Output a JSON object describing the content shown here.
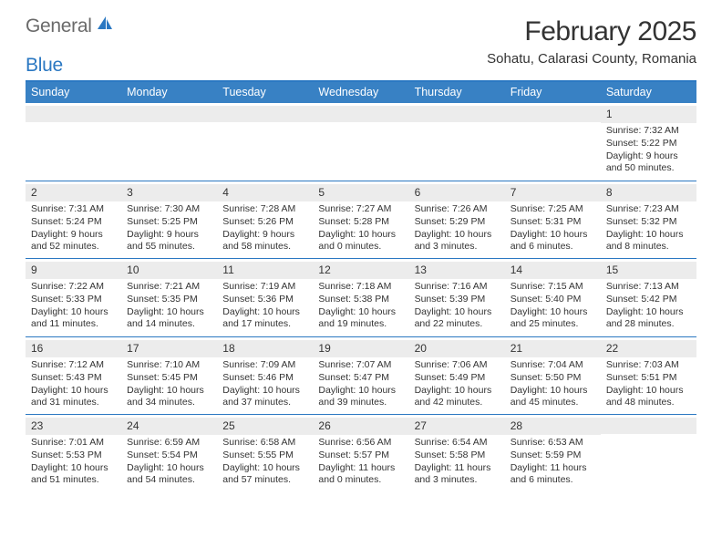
{
  "brand": {
    "word1": "General",
    "word2": "Blue"
  },
  "header": {
    "title": "February 2025",
    "location": "Sohatu, Calarasi County, Romania"
  },
  "colors": {
    "accent": "#2b78c2",
    "header_bg": "#3881c4",
    "header_text": "#ffffff",
    "num_bar_bg": "#ececec",
    "text": "#333333",
    "logo_gray": "#6a6a6a"
  },
  "day_names": [
    "Sunday",
    "Monday",
    "Tuesday",
    "Wednesday",
    "Thursday",
    "Friday",
    "Saturday"
  ],
  "weeks": [
    [
      {
        "n": "",
        "sr": "",
        "ss": "",
        "dl": ""
      },
      {
        "n": "",
        "sr": "",
        "ss": "",
        "dl": ""
      },
      {
        "n": "",
        "sr": "",
        "ss": "",
        "dl": ""
      },
      {
        "n": "",
        "sr": "",
        "ss": "",
        "dl": ""
      },
      {
        "n": "",
        "sr": "",
        "ss": "",
        "dl": ""
      },
      {
        "n": "",
        "sr": "",
        "ss": "",
        "dl": ""
      },
      {
        "n": "1",
        "sr": "Sunrise: 7:32 AM",
        "ss": "Sunset: 5:22 PM",
        "dl": "Daylight: 9 hours and 50 minutes."
      }
    ],
    [
      {
        "n": "2",
        "sr": "Sunrise: 7:31 AM",
        "ss": "Sunset: 5:24 PM",
        "dl": "Daylight: 9 hours and 52 minutes."
      },
      {
        "n": "3",
        "sr": "Sunrise: 7:30 AM",
        "ss": "Sunset: 5:25 PM",
        "dl": "Daylight: 9 hours and 55 minutes."
      },
      {
        "n": "4",
        "sr": "Sunrise: 7:28 AM",
        "ss": "Sunset: 5:26 PM",
        "dl": "Daylight: 9 hours and 58 minutes."
      },
      {
        "n": "5",
        "sr": "Sunrise: 7:27 AM",
        "ss": "Sunset: 5:28 PM",
        "dl": "Daylight: 10 hours and 0 minutes."
      },
      {
        "n": "6",
        "sr": "Sunrise: 7:26 AM",
        "ss": "Sunset: 5:29 PM",
        "dl": "Daylight: 10 hours and 3 minutes."
      },
      {
        "n": "7",
        "sr": "Sunrise: 7:25 AM",
        "ss": "Sunset: 5:31 PM",
        "dl": "Daylight: 10 hours and 6 minutes."
      },
      {
        "n": "8",
        "sr": "Sunrise: 7:23 AM",
        "ss": "Sunset: 5:32 PM",
        "dl": "Daylight: 10 hours and 8 minutes."
      }
    ],
    [
      {
        "n": "9",
        "sr": "Sunrise: 7:22 AM",
        "ss": "Sunset: 5:33 PM",
        "dl": "Daylight: 10 hours and 11 minutes."
      },
      {
        "n": "10",
        "sr": "Sunrise: 7:21 AM",
        "ss": "Sunset: 5:35 PM",
        "dl": "Daylight: 10 hours and 14 minutes."
      },
      {
        "n": "11",
        "sr": "Sunrise: 7:19 AM",
        "ss": "Sunset: 5:36 PM",
        "dl": "Daylight: 10 hours and 17 minutes."
      },
      {
        "n": "12",
        "sr": "Sunrise: 7:18 AM",
        "ss": "Sunset: 5:38 PM",
        "dl": "Daylight: 10 hours and 19 minutes."
      },
      {
        "n": "13",
        "sr": "Sunrise: 7:16 AM",
        "ss": "Sunset: 5:39 PM",
        "dl": "Daylight: 10 hours and 22 minutes."
      },
      {
        "n": "14",
        "sr": "Sunrise: 7:15 AM",
        "ss": "Sunset: 5:40 PM",
        "dl": "Daylight: 10 hours and 25 minutes."
      },
      {
        "n": "15",
        "sr": "Sunrise: 7:13 AM",
        "ss": "Sunset: 5:42 PM",
        "dl": "Daylight: 10 hours and 28 minutes."
      }
    ],
    [
      {
        "n": "16",
        "sr": "Sunrise: 7:12 AM",
        "ss": "Sunset: 5:43 PM",
        "dl": "Daylight: 10 hours and 31 minutes."
      },
      {
        "n": "17",
        "sr": "Sunrise: 7:10 AM",
        "ss": "Sunset: 5:45 PM",
        "dl": "Daylight: 10 hours and 34 minutes."
      },
      {
        "n": "18",
        "sr": "Sunrise: 7:09 AM",
        "ss": "Sunset: 5:46 PM",
        "dl": "Daylight: 10 hours and 37 minutes."
      },
      {
        "n": "19",
        "sr": "Sunrise: 7:07 AM",
        "ss": "Sunset: 5:47 PM",
        "dl": "Daylight: 10 hours and 39 minutes."
      },
      {
        "n": "20",
        "sr": "Sunrise: 7:06 AM",
        "ss": "Sunset: 5:49 PM",
        "dl": "Daylight: 10 hours and 42 minutes."
      },
      {
        "n": "21",
        "sr": "Sunrise: 7:04 AM",
        "ss": "Sunset: 5:50 PM",
        "dl": "Daylight: 10 hours and 45 minutes."
      },
      {
        "n": "22",
        "sr": "Sunrise: 7:03 AM",
        "ss": "Sunset: 5:51 PM",
        "dl": "Daylight: 10 hours and 48 minutes."
      }
    ],
    [
      {
        "n": "23",
        "sr": "Sunrise: 7:01 AM",
        "ss": "Sunset: 5:53 PM",
        "dl": "Daylight: 10 hours and 51 minutes."
      },
      {
        "n": "24",
        "sr": "Sunrise: 6:59 AM",
        "ss": "Sunset: 5:54 PM",
        "dl": "Daylight: 10 hours and 54 minutes."
      },
      {
        "n": "25",
        "sr": "Sunrise: 6:58 AM",
        "ss": "Sunset: 5:55 PM",
        "dl": "Daylight: 10 hours and 57 minutes."
      },
      {
        "n": "26",
        "sr": "Sunrise: 6:56 AM",
        "ss": "Sunset: 5:57 PM",
        "dl": "Daylight: 11 hours and 0 minutes."
      },
      {
        "n": "27",
        "sr": "Sunrise: 6:54 AM",
        "ss": "Sunset: 5:58 PM",
        "dl": "Daylight: 11 hours and 3 minutes."
      },
      {
        "n": "28",
        "sr": "Sunrise: 6:53 AM",
        "ss": "Sunset: 5:59 PM",
        "dl": "Daylight: 11 hours and 6 minutes."
      },
      {
        "n": "",
        "sr": "",
        "ss": "",
        "dl": ""
      }
    ]
  ]
}
